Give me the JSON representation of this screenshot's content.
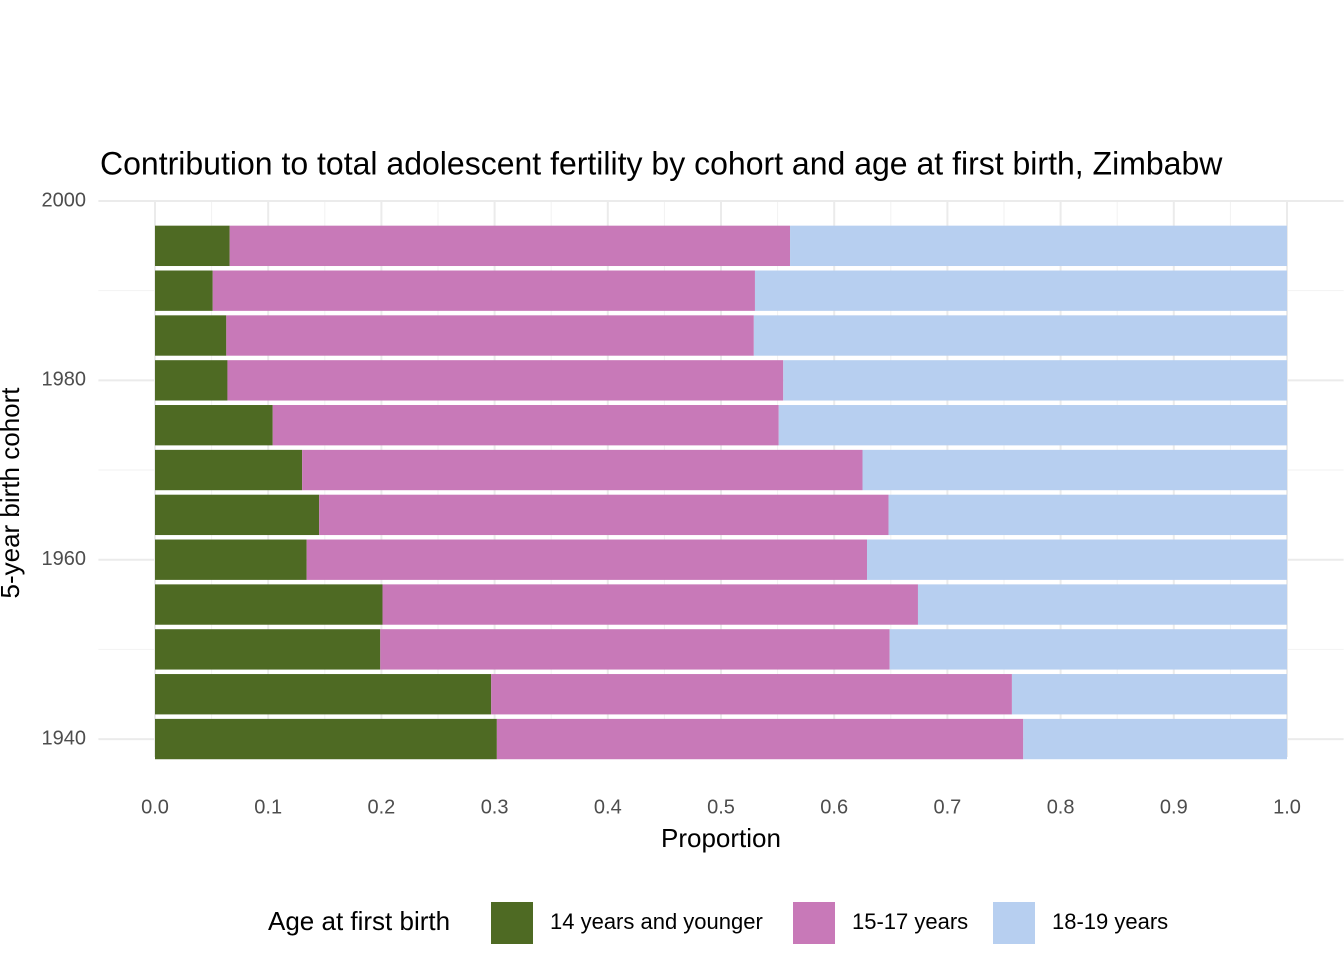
{
  "chart_data": {
    "type": "bar",
    "orientation": "horizontal",
    "stacked": true,
    "title": "Contribution to total adolescent fertility by cohort and age at first birth,  Zimbabw",
    "x_label": "Proportion",
    "y_label": "5-year birth cohort",
    "y": [
      1940,
      1945,
      1950,
      1955,
      1960,
      1965,
      1970,
      1975,
      1980,
      1985,
      1990,
      1995
    ],
    "series": [
      {
        "name": "14 years and younger",
        "color": "#4e6a23",
        "values": [
          0.302,
          0.297,
          0.199,
          0.201,
          0.134,
          0.145,
          0.13,
          0.104,
          0.064,
          0.063,
          0.051,
          0.066
        ]
      },
      {
        "name": "15-17 years",
        "color": "#c879b8",
        "values": [
          0.465,
          0.46,
          0.45,
          0.473,
          0.495,
          0.503,
          0.495,
          0.447,
          0.491,
          0.466,
          0.479,
          0.495
        ]
      },
      {
        "name": "18-19 years",
        "color": "#b7cff0",
        "values": [
          0.233,
          0.243,
          0.351,
          0.326,
          0.371,
          0.352,
          0.375,
          0.449,
          0.445,
          0.471,
          0.47,
          0.439
        ]
      }
    ],
    "xlim": [
      -0.05,
      1.05
    ],
    "xticks": [
      {
        "value": 0,
        "label": "0.0"
      },
      0.1,
      0.2,
      0.3,
      0.4,
      0.5,
      0.6,
      0.7,
      0.8,
      0.9,
      {
        "value": 1,
        "label": "1.0"
      }
    ],
    "ylim": [
      1938,
      2000
    ],
    "yticks": [
      1940,
      1960,
      1980,
      2000
    ],
    "grid": true,
    "minor_grid": true,
    "legend_title": "Age at first birth",
    "legend_position": "bottom"
  }
}
